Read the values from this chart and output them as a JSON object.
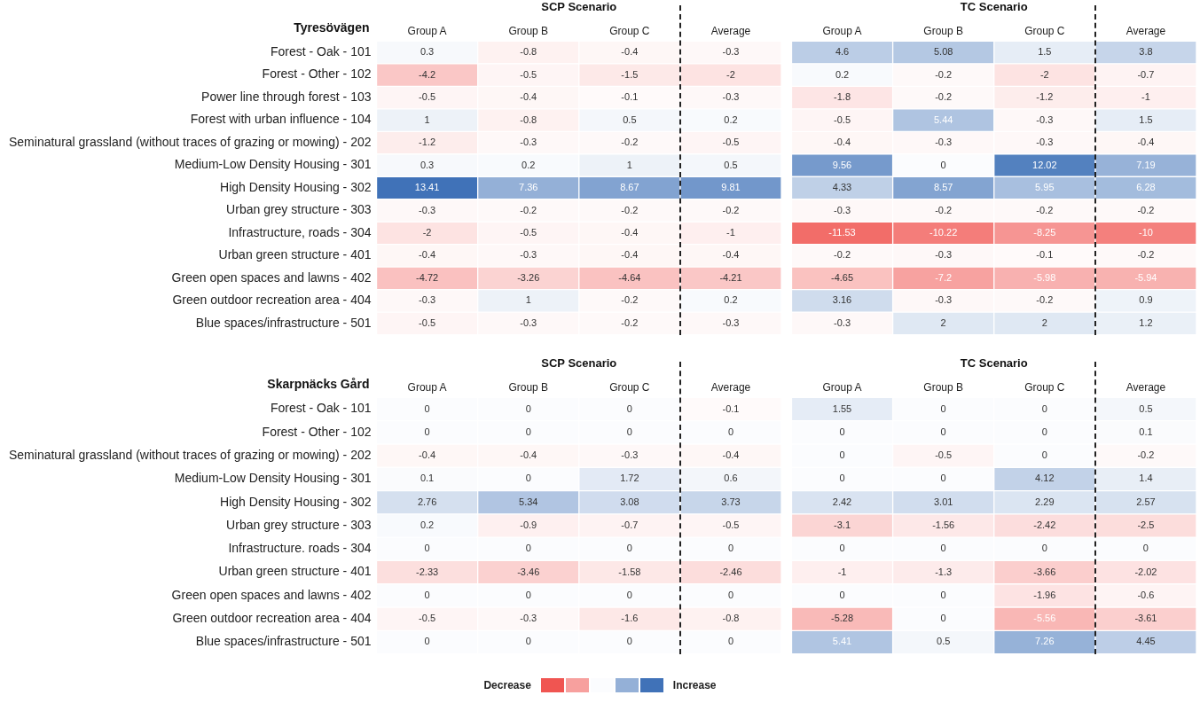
{
  "chart_data": [
    {
      "type": "heatmap",
      "ylabel": "Tyresövägen",
      "data_labels": true,
      "categories": [
        "Group A",
        "Group B",
        "Group C",
        "Average",
        "Group A",
        "Group B",
        "Group C",
        "Average"
      ],
      "y_categories": [
        "Forest - Oak - 101",
        "Forest - Other - 102",
        "Power line through forest - 103",
        "Forest with urban influence - 104",
        "Seminatural grassland (without traces of grazing or mowing) - 202",
        "Medium-Low Density Housing - 301",
        "High Density Housing - 302",
        "Urban grey structure - 303",
        "Infrastructure, roads - 304",
        "Urban green structure - 401",
        "Green open spaces and lawns - 402",
        "Green outdoor recreation area - 404",
        "Blue spaces/infrastructure - 501"
      ],
      "cells": [
        [
          0.3,
          -0.8,
          -0.4,
          -0.3,
          4.6,
          5.08,
          1.5,
          3.8
        ],
        [
          -4.2,
          -0.5,
          -1.5,
          -2.0,
          0.2,
          -0.2,
          -2.0,
          -0.7
        ],
        [
          -0.5,
          -0.4,
          -0.1,
          -0.3,
          -1.8,
          -0.2,
          -1.2,
          -1.0
        ],
        [
          1.0,
          -0.8,
          0.5,
          0.2,
          -0.5,
          5.44,
          -0.3,
          1.5
        ],
        [
          -1.2,
          -0.3,
          -0.2,
          -0.5,
          -0.4,
          -0.3,
          -0.3,
          -0.4
        ],
        [
          0.3,
          0.2,
          1.0,
          0.5,
          9.56,
          0,
          12.02,
          7.19
        ],
        [
          13.41,
          7.36,
          8.67,
          9.81,
          4.33,
          8.57,
          5.95,
          6.28
        ],
        [
          -0.3,
          -0.2,
          -0.2,
          -0.2,
          -0.3,
          -0.2,
          -0.2,
          -0.2
        ],
        [
          -2.0,
          -0.5,
          -0.4,
          -1.0,
          -11.53,
          -10.22,
          -8.25,
          -10.0
        ],
        [
          -0.4,
          -0.3,
          -0.4,
          -0.4,
          -0.2,
          -0.3,
          -0.1,
          -0.2
        ],
        [
          -4.72,
          -3.26,
          -4.64,
          -4.21,
          -4.65,
          -7.2,
          -5.98,
          -5.94
        ],
        [
          -0.3,
          1.0,
          -0.2,
          0.2,
          3.16,
          -0.3,
          -0.2,
          0.9
        ],
        [
          -0.5,
          -0.3,
          -0.2,
          -0.3,
          -0.3,
          2.0,
          2.0,
          1.2
        ]
      ],
      "annotations": [
        "SCP Scenario",
        "TC Scenario"
      ]
    },
    {
      "type": "heatmap",
      "ylabel": "Skarpnäcks Gård",
      "data_labels": true,
      "categories": [
        "Group A",
        "Group B",
        "Group C",
        "Average",
        "Group A",
        "Group B",
        "Group C",
        "Average"
      ],
      "y_categories": [
        "Forest - Oak - 101",
        "Forest - Other - 102",
        "Seminatural grassland (without traces of grazing or mowing) - 202",
        "Medium-Low Density Housing - 301",
        "High Density Housing - 302",
        "Urban grey structure - 303",
        "Infrastructure. roads - 304",
        "Urban green structure - 401",
        "Green open spaces and lawns - 402",
        "Green outdoor recreation area - 404",
        "Blue spaces/infrastructure - 501"
      ],
      "cells": [
        [
          0,
          0,
          0,
          -0.1,
          1.55,
          0,
          0,
          0.5
        ],
        [
          0,
          0,
          0,
          0,
          0,
          0,
          0,
          0.1
        ],
        [
          -0.4,
          -0.4,
          -0.3,
          -0.4,
          0,
          -0.5,
          0,
          -0.2
        ],
        [
          0.1,
          0,
          1.72,
          0.6,
          0,
          0,
          4.12,
          1.4
        ],
        [
          2.76,
          5.34,
          3.08,
          3.73,
          2.42,
          3.01,
          2.29,
          2.57
        ],
        [
          0.2,
          -0.9,
          -0.7,
          -0.5,
          -3.1,
          -1.56,
          -2.42,
          -2.5
        ],
        [
          0,
          0,
          0,
          0,
          0,
          0,
          0,
          0
        ],
        [
          -2.33,
          -3.46,
          -1.58,
          -2.46,
          -1.0,
          -1.3,
          -3.66,
          -2.02
        ],
        [
          0,
          0,
          0,
          0,
          0,
          0,
          -1.96,
          -0.6
        ],
        [
          -0.5,
          -0.3,
          -1.6,
          -0.8,
          -5.28,
          0,
          -5.56,
          -3.61
        ],
        [
          0,
          0,
          0,
          0,
          5.41,
          0.5,
          7.26,
          4.45
        ]
      ],
      "annotations": [
        "SCP Scenario",
        "TC Scenario",
        "Decrease",
        "Increase"
      ]
    }
  ]
}
